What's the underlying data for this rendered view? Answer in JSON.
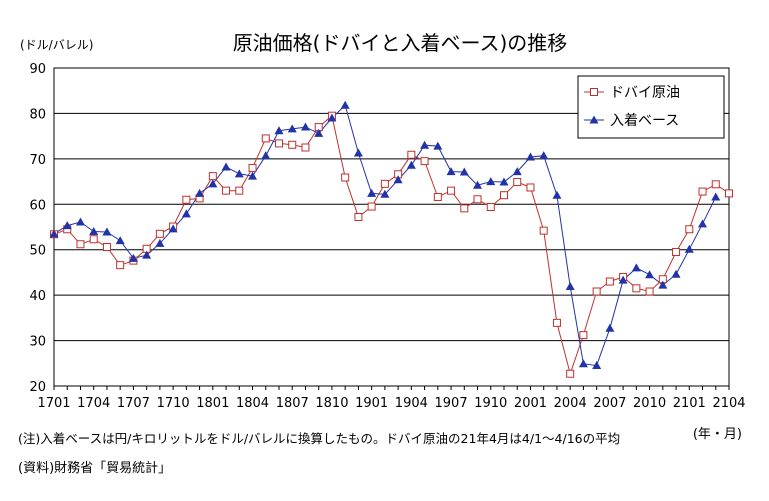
{
  "chart_data": {
    "type": "line",
    "title": "原油価格(ドバイと入着ベース)の推移",
    "unit_label": "(ドル/バレル)",
    "xlabel": "(年・月)",
    "ylim": [
      20,
      90
    ],
    "yticks": [
      20,
      30,
      40,
      50,
      60,
      70,
      80,
      90
    ],
    "grid": true,
    "legend_position": "top-right",
    "xtick_labels": [
      "1701",
      "1704",
      "1707",
      "1710",
      "1801",
      "1804",
      "1807",
      "1810",
      "1901",
      "1904",
      "1907",
      "1910",
      "2001",
      "2004",
      "2007",
      "2010",
      "2101",
      "2104"
    ],
    "x": [
      "1701",
      "1702",
      "1703",
      "1704",
      "1705",
      "1706",
      "1707",
      "1708",
      "1709",
      "1710",
      "1711",
      "1712",
      "1801",
      "1802",
      "1803",
      "1804",
      "1805",
      "1806",
      "1807",
      "1808",
      "1809",
      "1810",
      "1811",
      "1812",
      "1901",
      "1902",
      "1903",
      "1904",
      "1905",
      "1906",
      "1907",
      "1908",
      "1909",
      "1910",
      "1911",
      "1912",
      "2001",
      "2002",
      "2003",
      "2004",
      "2005",
      "2006",
      "2007",
      "2008",
      "2009",
      "2010",
      "2011",
      "2012",
      "2101",
      "2102",
      "2103",
      "2104"
    ],
    "series": [
      {
        "name": "ドバイ原油",
        "color": "#c0312b",
        "marker": "square",
        "values": [
          53.4,
          54.5,
          51.2,
          52.3,
          50.6,
          46.6,
          47.6,
          50.2,
          53.5,
          55.1,
          61.0,
          61.3,
          66.2,
          63.0,
          63.0,
          68.0,
          74.5,
          73.4,
          73.1,
          72.5,
          77.0,
          79.5,
          65.9,
          57.2,
          59.5,
          64.5,
          66.6,
          70.9,
          69.5,
          61.6,
          63.0,
          59.1,
          61.1,
          59.4,
          62.0,
          64.9,
          63.7,
          54.2,
          33.9,
          22.7,
          31.2,
          40.8,
          43.0,
          44.0,
          41.5,
          40.8,
          43.5,
          49.5,
          54.5,
          62.8,
          64.4,
          62.4
        ]
      },
      {
        "name": "入着ベース",
        "color": "#2233a8",
        "marker": "triangle",
        "values": [
          53.5,
          55.3,
          56.1,
          54.0,
          53.9,
          52.0,
          48.1,
          48.8,
          51.4,
          54.6,
          57.9,
          62.4,
          64.5,
          68.2,
          66.7,
          66.2,
          70.7,
          76.2,
          76.6,
          77.0,
          75.6,
          79.0,
          81.8,
          71.3,
          62.4,
          62.2,
          65.4,
          68.6,
          73.0,
          72.8,
          67.2,
          67.1,
          64.2,
          65.0,
          64.9,
          67.2,
          70.4,
          70.7,
          62.0,
          41.9,
          24.9,
          24.5,
          32.7,
          43.3,
          46.0,
          44.5,
          42.2,
          44.6,
          50.1,
          55.7,
          61.6,
          null
        ]
      }
    ]
  },
  "notes": {
    "note_line": "(注)入着ベースは円/キロリットルをドル/バレルに換算したもの。ドバイ原油の21年4月は4/1～4/16の平均",
    "source_line": "(資料)財務省「貿易統計」"
  }
}
